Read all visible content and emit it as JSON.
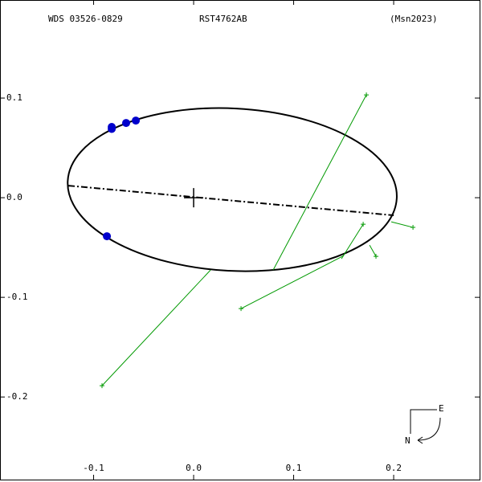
{
  "chart_data": {
    "type": "orbit",
    "header": {
      "left": "WDS 03526-0829",
      "center": "RST4762AB",
      "right": "(Msn2023)"
    },
    "xlim": [
      -0.1936,
      0.2859
    ],
    "ylim": [
      -0.2829,
      0.1984
    ],
    "xticks": [
      -0.1,
      {
        "value": 0,
        "label": "0.0"
      },
      0.1,
      0.2
    ],
    "yticks": [
      0.1,
      {
        "value": 0,
        "label": "0.0"
      },
      -0.1,
      -0.2
    ],
    "orbit": {
      "color": "#000000",
      "cx": 0.0386,
      "cy": 0.0081,
      "a": 0.1647,
      "b": 0.0815,
      "tilt_deg": -3
    },
    "node_line": {
      "color": "#000000",
      "x": [
        -0.1253,
        0.2
      ],
      "y": [
        0.0121,
        -0.0177
      ]
    },
    "observations": {
      "color": "#0000cc",
      "x": [
        -0.0819,
        -0.0819,
        -0.0675,
        -0.0578,
        -0.0867
      ],
      "y": [
        0.071,
        0.069,
        0.075,
        0.0774,
        -0.0387
      ]
    },
    "residuals": {
      "color": "#009900",
      "x": [
        0.1727,
        -0.0916,
        0.0474,
        0.1695,
        0.2193,
        0.1823
      ],
      "y": [
        0.1032,
        -0.1887,
        -0.1113,
        -0.0266,
        -0.0298,
        -0.0589
      ],
      "orbit_x": [
        0.0795,
        0.0169,
        0.1502,
        0.1478,
        0.1976,
        0.1759
      ],
      "orbit_y": [
        -0.0726,
        -0.0726,
        -0.0581,
        -0.0613,
        -0.0242,
        -0.0476
      ]
    },
    "compass": {
      "east": "E",
      "north": "N"
    }
  }
}
